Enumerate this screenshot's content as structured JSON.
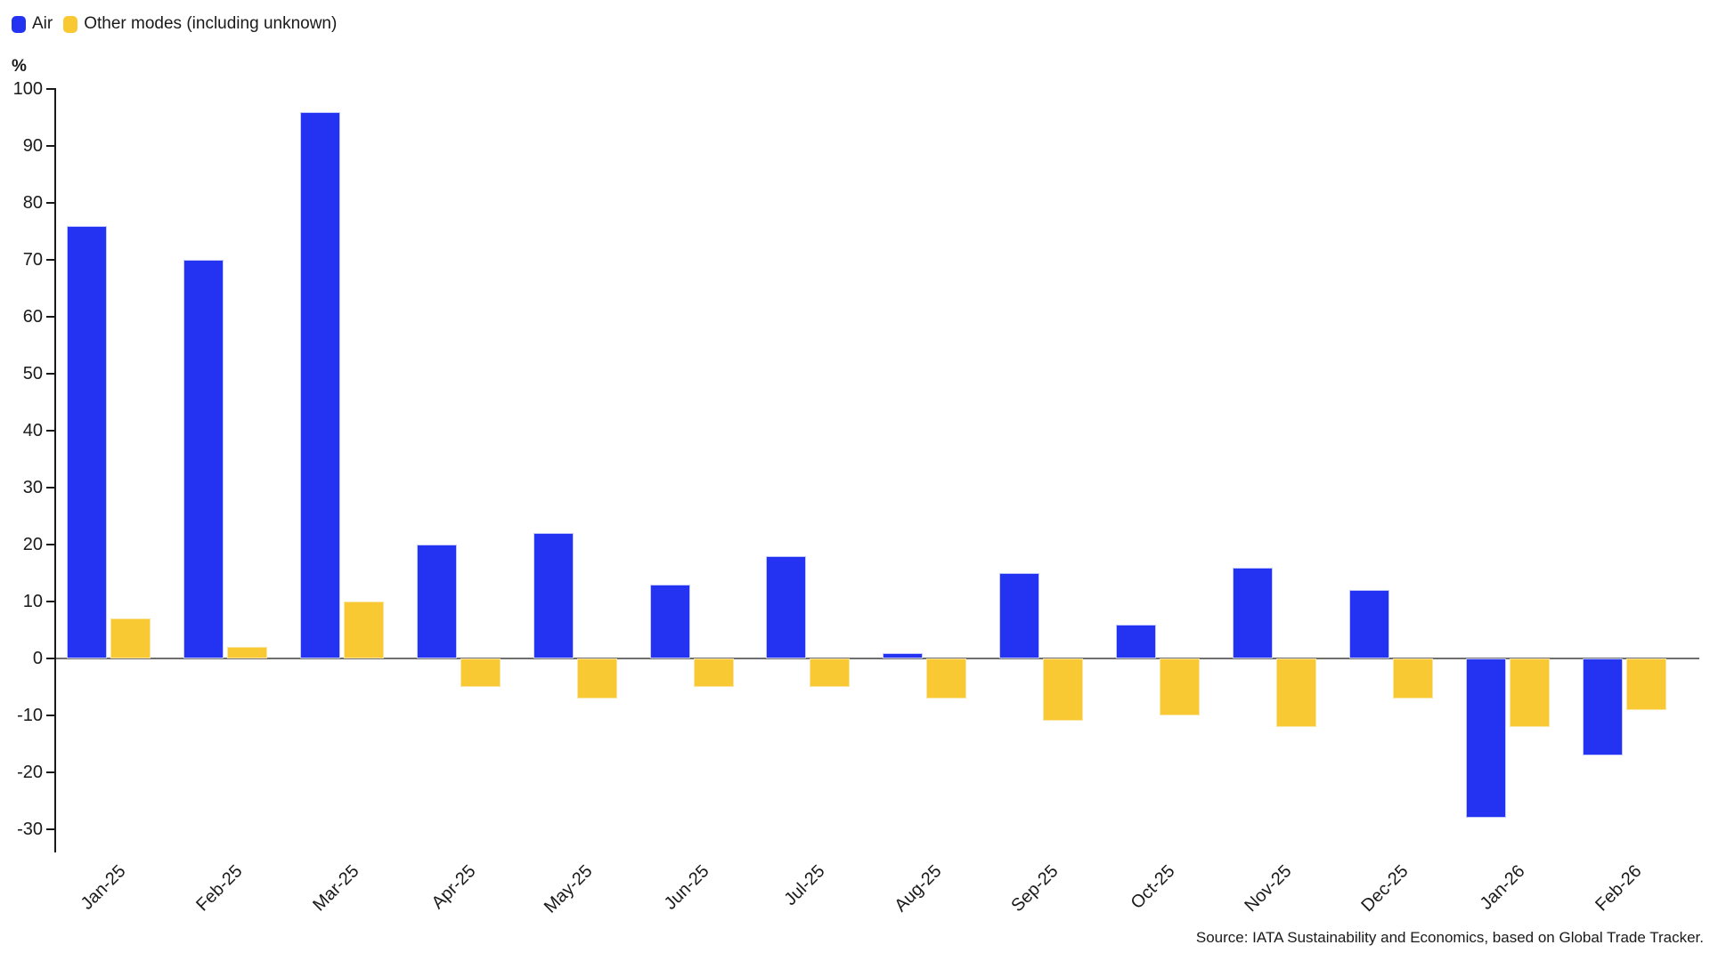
{
  "legend": {
    "items": [
      {
        "label": "Air",
        "color": "#2333f1"
      },
      {
        "label": "Other modes (including unknown)",
        "color": "#f9c933"
      }
    ]
  },
  "unit_label": "%",
  "source": "Source: IATA Sustainability and Economics, based on Global Trade Tracker.",
  "colors": {
    "air": "#2333f1",
    "other_modes": "#f9c933",
    "zero_line": "#6f6f6f",
    "axis": "#1a1a1a"
  },
  "chart_data": {
    "type": "bar",
    "title": "",
    "xlabel": "",
    "ylabel": "%",
    "categories": [
      "Jan-25",
      "Feb-25",
      "Mar-25",
      "Apr-25",
      "May-25",
      "Jun-25",
      "Jul-25",
      "Aug-25",
      "Sep-25",
      "Oct-25",
      "Nov-25",
      "Dec-25",
      "Jan-26",
      "Feb-26"
    ],
    "series": [
      {
        "name": "Air",
        "color": "#2333f1",
        "values": [
          76,
          70,
          96,
          20,
          22,
          13,
          18,
          1,
          15,
          6,
          16,
          12,
          -28,
          -17
        ]
      },
      {
        "name": "Other modes (including unknown)",
        "color": "#f9c933",
        "values": [
          7,
          2,
          10,
          -5,
          -7,
          -5,
          -5,
          -7,
          -11,
          -10,
          -12,
          -7,
          -12,
          -9
        ]
      }
    ],
    "ylim": [
      -35,
      100
    ],
    "yticks": [
      100,
      90,
      80,
      70,
      60,
      50,
      40,
      30,
      20,
      10,
      0,
      -10,
      -20,
      -30
    ],
    "grid": false,
    "legend_position": "top-left",
    "zero_line": true
  }
}
